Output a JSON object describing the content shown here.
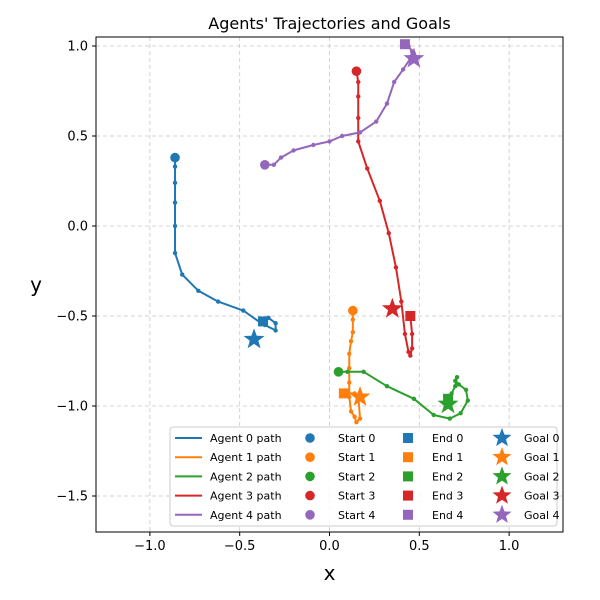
{
  "chart_data": {
    "type": "line",
    "title": "Agents' Trajectories and Goals",
    "xlabel": "x",
    "ylabel": "y",
    "xlim": [
      -1.3,
      1.3
    ],
    "ylim": [
      -1.7,
      1.05
    ],
    "xticks": [
      -1.0,
      -0.5,
      0.0,
      0.5,
      1.0
    ],
    "xtick_labels": [
      "−1.0",
      "−0.5",
      "0.0",
      "0.5",
      "1.0"
    ],
    "yticks": [
      -1.5,
      -1.0,
      -0.5,
      0.0,
      0.5,
      1.0
    ],
    "ytick_labels": [
      "−1.5",
      "−1.0",
      "−0.5",
      "0.0",
      "0.5",
      "1.0"
    ],
    "grid": true,
    "legend_position": "lower-right",
    "series": [
      {
        "name": "Agent 0 path",
        "color": "#1f77b4",
        "points": [
          [
            -0.86,
            0.38
          ],
          [
            -0.86,
            0.33
          ],
          [
            -0.86,
            0.24
          ],
          [
            -0.86,
            0.13
          ],
          [
            -0.86,
            0.0
          ],
          [
            -0.86,
            -0.15
          ],
          [
            -0.82,
            -0.27
          ],
          [
            -0.73,
            -0.36
          ],
          [
            -0.62,
            -0.42
          ],
          [
            -0.48,
            -0.47
          ],
          [
            -0.38,
            -0.54
          ],
          [
            -0.34,
            -0.51
          ],
          [
            -0.3,
            -0.54
          ],
          [
            -0.3,
            -0.58
          ],
          [
            -0.36,
            -0.55
          ],
          [
            -0.37,
            -0.53
          ]
        ],
        "start": [
          -0.86,
          0.38
        ],
        "start_label": "Start 0",
        "end": [
          -0.37,
          -0.53
        ],
        "end_label": "End 0",
        "goal": [
          -0.42,
          -0.63
        ],
        "goal_label": "Goal 0"
      },
      {
        "name": "Agent 1 path",
        "color": "#ff7f0e",
        "points": [
          [
            0.13,
            -0.47
          ],
          [
            0.13,
            -0.52
          ],
          [
            0.13,
            -0.59
          ],
          [
            0.12,
            -0.64
          ],
          [
            0.11,
            -0.71
          ],
          [
            0.11,
            -0.79
          ],
          [
            0.11,
            -0.87
          ],
          [
            0.11,
            -0.95
          ],
          [
            0.12,
            -1.03
          ],
          [
            0.14,
            -1.06
          ],
          [
            0.15,
            -1.09
          ],
          [
            0.17,
            -1.07
          ],
          [
            0.16,
            -0.94
          ],
          [
            0.14,
            -0.93
          ],
          [
            0.09,
            -0.93
          ],
          [
            0.08,
            -0.93
          ]
        ],
        "start": [
          0.13,
          -0.47
        ],
        "start_label": "Start 1",
        "end": [
          0.08,
          -0.93
        ],
        "end_label": "End 1",
        "goal": [
          0.17,
          -0.95
        ],
        "goal_label": "Goal 1"
      },
      {
        "name": "Agent 2 path",
        "color": "#2ca02c",
        "points": [
          [
            0.05,
            -0.81
          ],
          [
            0.1,
            -0.81
          ],
          [
            0.19,
            -0.81
          ],
          [
            0.32,
            -0.89
          ],
          [
            0.47,
            -0.96
          ],
          [
            0.58,
            -1.05
          ],
          [
            0.67,
            -1.07
          ],
          [
            0.73,
            -1.04
          ],
          [
            0.77,
            -0.97
          ],
          [
            0.76,
            -0.91
          ],
          [
            0.72,
            -0.88
          ],
          [
            0.7,
            -0.86
          ],
          [
            0.71,
            -0.84
          ],
          [
            0.7,
            -0.89
          ],
          [
            0.68,
            -0.93
          ],
          [
            0.66,
            -0.96
          ]
        ],
        "start": [
          0.05,
          -0.81
        ],
        "start_label": "Start 2",
        "end": [
          0.66,
          -0.96
        ],
        "end_label": "End 2",
        "goal": [
          0.66,
          -0.99
        ],
        "goal_label": "Goal 2"
      },
      {
        "name": "Agent 3 path",
        "color": "#d62728",
        "points": [
          [
            0.15,
            0.86
          ],
          [
            0.16,
            0.8
          ],
          [
            0.16,
            0.72
          ],
          [
            0.16,
            0.6
          ],
          [
            0.16,
            0.47
          ],
          [
            0.21,
            0.32
          ],
          [
            0.28,
            0.14
          ],
          [
            0.33,
            -0.04
          ],
          [
            0.37,
            -0.23
          ],
          [
            0.4,
            -0.42
          ],
          [
            0.42,
            -0.6
          ],
          [
            0.44,
            -0.7
          ],
          [
            0.45,
            -0.72
          ],
          [
            0.46,
            -0.68
          ],
          [
            0.46,
            -0.6
          ],
          [
            0.45,
            -0.5
          ]
        ],
        "start": [
          0.15,
          0.86
        ],
        "start_label": "Start 3",
        "end": [
          0.45,
          -0.5
        ],
        "end_label": "End 3",
        "goal": [
          0.35,
          -0.46
        ],
        "goal_label": "Goal 3"
      },
      {
        "name": "Agent 4 path",
        "color": "#9467bd",
        "points": [
          [
            -0.36,
            0.34
          ],
          [
            -0.31,
            0.34
          ],
          [
            -0.27,
            0.38
          ],
          [
            -0.2,
            0.42
          ],
          [
            -0.09,
            0.45
          ],
          [
            0.0,
            0.47
          ],
          [
            0.07,
            0.5
          ],
          [
            0.17,
            0.52
          ],
          [
            0.26,
            0.58
          ],
          [
            0.32,
            0.68
          ],
          [
            0.36,
            0.8
          ],
          [
            0.41,
            0.87
          ],
          [
            0.45,
            0.93
          ],
          [
            0.46,
            0.97
          ],
          [
            0.44,
            1.0
          ],
          [
            0.42,
            1.01
          ]
        ],
        "start": [
          -0.36,
          0.34
        ],
        "start_label": "Start 4",
        "end": [
          0.42,
          1.01
        ],
        "end_label": "End 4",
        "goal": [
          0.47,
          0.93
        ],
        "goal_label": "Goal 4"
      }
    ]
  }
}
